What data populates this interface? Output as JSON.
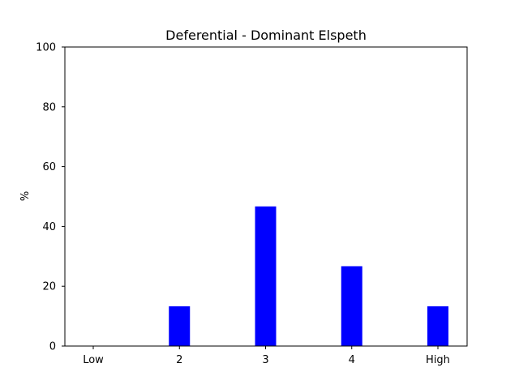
{
  "chart_data": {
    "type": "bar",
    "title": "Deferential - Dominant Elspeth",
    "xlabel": "",
    "ylabel": "%",
    "categories": [
      "Low",
      "2",
      "3",
      "4",
      "High"
    ],
    "values": [
      0,
      13.3,
      46.7,
      26.7,
      13.3
    ],
    "ylim": [
      0,
      100
    ],
    "yticks": [
      0,
      20,
      40,
      60,
      80,
      100
    ],
    "bar_color": "#0000ff",
    "grid": false,
    "legend": null
  }
}
